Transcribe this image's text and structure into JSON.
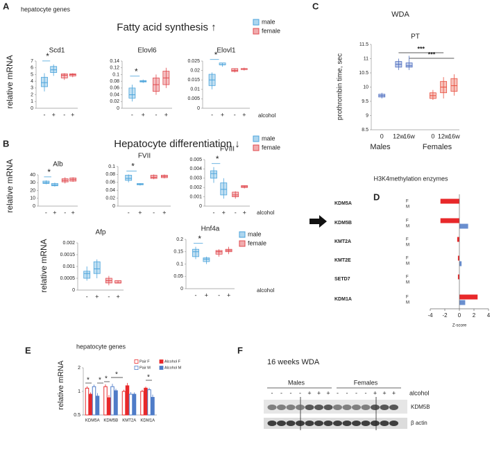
{
  "figure": {
    "A": {
      "letter": "A",
      "subtitle": "hepatocyte genes",
      "heading": "Fatty acid synthesis ↑",
      "legend": [
        {
          "name": "male",
          "color": "#4aa3db"
        },
        {
          "name": "female",
          "color": "#e0474c"
        }
      ],
      "y_label": "relative mRNA",
      "x_label": "alcohol"
    },
    "B": {
      "letter": "B",
      "heading": "Hepatocyte differentiation ↓",
      "legend": [
        {
          "name": "male",
          "color": "#4aa3db"
        },
        {
          "name": "female",
          "color": "#e0474c"
        }
      ],
      "y_label": "relative mRNA",
      "x_label": "alcohol"
    },
    "C": {
      "letter": "C"
    },
    "D": {
      "letter": "D"
    },
    "E": {
      "letter": "E"
    },
    "F": {
      "letter": "F",
      "title": "16 weeks WDA",
      "groups": [
        "Males",
        "Females"
      ],
      "x_label": "alcohol",
      "lanes": [
        "-",
        "-",
        "-",
        "-",
        "+",
        "+",
        "+",
        "-",
        "-",
        "-",
        "-",
        "+",
        "+",
        "+"
      ],
      "bands": [
        "KDM5B",
        "β actin"
      ]
    }
  },
  "chart_data": [
    {
      "type": "box",
      "title": "Scd1",
      "ylim": [
        0,
        7
      ],
      "yticks": [
        0,
        1,
        2,
        3,
        4,
        5,
        6,
        7
      ],
      "categories": [
        "-",
        "+",
        "-",
        "+"
      ],
      "boxes": [
        [
          2.5,
          3.2,
          3.8,
          4.6,
          5.2
        ],
        [
          4.8,
          5.3,
          5.7,
          6.2,
          6.5
        ],
        [
          4.2,
          4.5,
          4.9,
          5.1,
          5.2
        ],
        [
          4.6,
          4.8,
          5.0,
          5.1,
          5.2
        ]
      ],
      "colors": [
        "#4aa3db",
        "#4aa3db",
        "#e0474c",
        "#e0474c"
      ],
      "significance": "*"
    },
    {
      "type": "box",
      "title": "Elovl6",
      "ylim": [
        0,
        0.14
      ],
      "yticks": [
        0,
        0.02,
        0.04,
        0.06,
        0.08,
        0.1,
        0.12,
        0.14
      ],
      "categories": [
        "-",
        "+",
        "-",
        "+"
      ],
      "boxes": [
        [
          0.02,
          0.03,
          0.04,
          0.06,
          0.07
        ],
        [
          0.075,
          0.078,
          0.08,
          0.082,
          0.085
        ],
        [
          0.04,
          0.05,
          0.07,
          0.09,
          0.1
        ],
        [
          0.06,
          0.07,
          0.09,
          0.11,
          0.12
        ]
      ],
      "colors": [
        "#4aa3db",
        "#4aa3db",
        "#e0474c",
        "#e0474c"
      ],
      "significance": "*"
    },
    {
      "type": "box",
      "title": "Elovl1",
      "ylim": [
        0,
        0.025
      ],
      "yticks": [
        0,
        0.005,
        0.01,
        0.015,
        0.02,
        0.025
      ],
      "categories": [
        "-",
        "+",
        "-",
        "+"
      ],
      "boxes": [
        [
          0.01,
          0.012,
          0.015,
          0.018,
          0.019
        ],
        [
          0.022,
          0.023,
          0.023,
          0.024,
          0.024
        ],
        [
          0.019,
          0.0195,
          0.02,
          0.021,
          0.021
        ],
        [
          0.02,
          0.0205,
          0.021,
          0.021,
          0.0215
        ]
      ],
      "colors": [
        "#4aa3db",
        "#4aa3db",
        "#e0474c",
        "#e0474c"
      ],
      "significance": "*"
    },
    {
      "type": "box",
      "title": "Alb",
      "ylim": [
        0,
        40
      ],
      "yticks": [
        0,
        10,
        20,
        30,
        40
      ],
      "categories": [
        "-",
        "+",
        "-",
        "+"
      ],
      "boxes": [
        [
          28,
          29,
          30,
          32,
          33
        ],
        [
          25,
          26,
          27,
          29,
          30
        ],
        [
          29,
          31,
          33,
          35,
          37
        ],
        [
          31,
          32,
          34,
          36,
          37
        ]
      ],
      "colors": [
        "#4aa3db",
        "#4aa3db",
        "#e0474c",
        "#e0474c"
      ],
      "significance": "*"
    },
    {
      "type": "box",
      "title": "FVII",
      "ylim": [
        0,
        0.1
      ],
      "yticks": [
        0,
        0.02,
        0.04,
        0.06,
        0.08,
        0.1
      ],
      "categories": [
        "-",
        "+",
        "-",
        "+"
      ],
      "boxes": [
        [
          0.06,
          0.065,
          0.07,
          0.078,
          0.08
        ],
        [
          0.052,
          0.054,
          0.055,
          0.057,
          0.058
        ],
        [
          0.068,
          0.07,
          0.073,
          0.078,
          0.08
        ],
        [
          0.07,
          0.072,
          0.075,
          0.078,
          0.08
        ]
      ],
      "colors": [
        "#4aa3db",
        "#4aa3db",
        "#e0474c",
        "#e0474c"
      ],
      "significance": "*"
    },
    {
      "type": "box",
      "title": "FVIII",
      "ylim": [
        0,
        0.005
      ],
      "yticks": [
        0,
        0.001,
        0.002,
        0.003,
        0.004,
        0.005
      ],
      "categories": [
        "-",
        "+",
        "-",
        "+"
      ],
      "boxes": [
        [
          0.0025,
          0.003,
          0.0035,
          0.0038,
          0.0042
        ],
        [
          0.0008,
          0.0012,
          0.0018,
          0.0025,
          0.003
        ],
        [
          0.0008,
          0.001,
          0.0012,
          0.0015,
          0.0016
        ],
        [
          0.0019,
          0.002,
          0.0021,
          0.0022,
          0.0022
        ]
      ],
      "colors": [
        "#4aa3db",
        "#4aa3db",
        "#e0474c",
        "#e0474c"
      ],
      "significance": "*"
    },
    {
      "type": "box",
      "title": "Afp",
      "ylim": [
        0,
        0.002
      ],
      "yticks": [
        0,
        0.0005,
        0.001,
        0.0015,
        0.002
      ],
      "categories": [
        "-",
        "+",
        "-",
        "+"
      ],
      "boxes": [
        [
          0.0004,
          0.0005,
          0.0007,
          0.0008,
          0.001
        ],
        [
          0.0005,
          0.0007,
          0.0009,
          0.0012,
          0.0013
        ],
        [
          0.0002,
          0.0003,
          0.0004,
          0.0005,
          0.0006
        ],
        [
          0.0003,
          0.0003,
          0.0003,
          0.0004,
          0.0004
        ]
      ],
      "colors": [
        "#4aa3db",
        "#4aa3db",
        "#e0474c",
        "#e0474c"
      ]
    },
    {
      "type": "box",
      "title": "Hnf4a",
      "ylim": [
        0,
        0.2
      ],
      "yticks": [
        0,
        0.05,
        0.1,
        0.15,
        0.2
      ],
      "categories": [
        "-",
        "+",
        "-",
        "+"
      ],
      "boxes": [
        [
          0.12,
          0.13,
          0.15,
          0.16,
          0.17
        ],
        [
          0.1,
          0.11,
          0.12,
          0.125,
          0.13
        ],
        [
          0.13,
          0.14,
          0.15,
          0.155,
          0.16
        ],
        [
          0.14,
          0.15,
          0.155,
          0.16,
          0.17
        ]
      ],
      "colors": [
        "#4aa3db",
        "#4aa3db",
        "#e0474c",
        "#e0474c"
      ],
      "significance": "*"
    },
    {
      "type": "box",
      "heading": "WDA",
      "title": "PT",
      "y_label": "prothrombin time, sec",
      "ylim": [
        8.5,
        11.5
      ],
      "yticks": [
        8.5,
        9,
        9.5,
        10,
        10.5,
        11,
        11.5
      ],
      "categories": [
        "0",
        "12w",
        "16w",
        "0",
        "12w",
        "16w"
      ],
      "groups": [
        "Males",
        "Females"
      ],
      "boxes": [
        [
          9.6,
          9.65,
          9.7,
          9.75,
          9.8
        ],
        [
          10.6,
          10.7,
          10.8,
          10.9,
          11.0
        ],
        [
          10.6,
          10.7,
          10.75,
          10.85,
          11.1
        ],
        [
          9.55,
          9.6,
          9.7,
          9.8,
          9.9
        ],
        [
          9.6,
          9.8,
          10.0,
          10.2,
          10.35
        ],
        [
          9.7,
          9.85,
          10.05,
          10.3,
          10.45
        ]
      ],
      "colors": [
        "#4f6fc0",
        "#4f6fc0",
        "#4f6fc0",
        "#e85040",
        "#e85040",
        "#e85040"
      ],
      "significance": [
        "***",
        "***"
      ]
    },
    {
      "type": "hbar",
      "title": "H3K4methylation enzymes",
      "x_label": "Z-score",
      "xlim": [
        -4,
        4
      ],
      "xticks": [
        -4,
        -2,
        0,
        2,
        4
      ],
      "categories": [
        "KDM5A",
        "KDM5B",
        "KMT2A",
        "KMT2E",
        "SETD7",
        "KDM1A"
      ],
      "series": [
        {
          "name": "F",
          "color": "#e8282a",
          "values": [
            -2.6,
            -2.6,
            -0.3,
            -0.2,
            -0.2,
            2.5
          ]
        },
        {
          "name": "M",
          "color": "#6a8fcf",
          "values": [
            0,
            1.2,
            0,
            0.3,
            0,
            0.8
          ]
        }
      ]
    },
    {
      "type": "bar",
      "subtitle": "hepatocyte genes",
      "y_label": "relative mRNA",
      "log_scale": true,
      "ylim": [
        0.5,
        2
      ],
      "yticks": [
        0.5,
        1,
        2
      ],
      "categories": [
        "KDM5A",
        "KDM5B",
        "KMT2A",
        "KDM1A"
      ],
      "series": [
        {
          "name": "Pair F",
          "color": "#e8282a",
          "filled": false,
          "values": [
            1.1,
            1.15,
            1.0,
            1.0
          ],
          "errors": [
            0.06,
            0.08,
            0.05,
            0.05
          ]
        },
        {
          "name": "Alcohol F",
          "color": "#e8282a",
          "filled": true,
          "values": [
            0.92,
            0.83,
            1.18,
            1.1
          ],
          "errors": [
            0.05,
            0.07,
            0.1,
            0.05
          ]
        },
        {
          "name": "Pair M",
          "color": "#4f7cc8",
          "filled": false,
          "values": [
            1.15,
            1.15,
            0.92,
            1.05
          ],
          "errors": [
            0.07,
            0.1,
            0.06,
            0.06
          ]
        },
        {
          "name": "Alcohol M",
          "color": "#4f7cc8",
          "filled": true,
          "values": [
            0.87,
            1.02,
            0.92,
            0.84
          ],
          "errors": [
            0.08,
            0.06,
            0.05,
            0.07
          ]
        }
      ],
      "significance": [
        "*",
        "*",
        "*",
        "*",
        "*"
      ]
    }
  ]
}
